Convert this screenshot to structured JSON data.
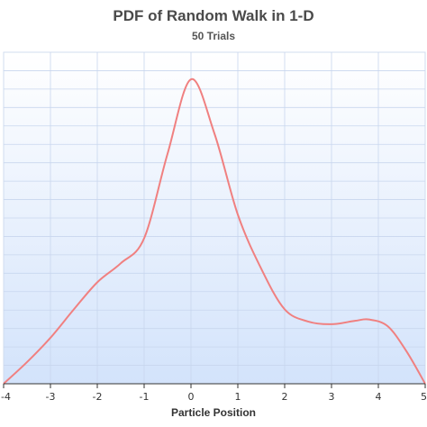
{
  "chart_data": {
    "type": "line",
    "title": "PDF of Random Walk in 1-D",
    "subtitle": "50 Trials",
    "xlabel": "Particle Position",
    "ylabel": "",
    "xlim": [
      -4,
      5
    ],
    "x_ticks": [
      "-4",
      "-3",
      "-2",
      "-1",
      "0",
      "1",
      "2",
      "3",
      "4",
      "5"
    ],
    "grid": true,
    "legend": "none",
    "series": [
      {
        "color": "#f08080",
        "x": [
          -4,
          -3.5,
          -3,
          -2.5,
          -2,
          -1.5,
          -1,
          -0.5,
          0,
          0.5,
          1,
          1.5,
          2,
          2.5,
          3,
          3.5,
          3.8,
          4.2,
          4.6,
          5
        ],
        "y": [
          0.0,
          0.032,
          0.068,
          0.11,
          0.15,
          0.178,
          0.215,
          0.34,
          0.45,
          0.37,
          0.25,
          0.17,
          0.11,
          0.092,
          0.088,
          0.093,
          0.095,
          0.085,
          0.048,
          0.0
        ]
      }
    ]
  },
  "colors": {
    "background_top": "#ffffff",
    "background_bottom": "#d3e3fb",
    "gridline": "#c8d6ee",
    "axis": "#333333"
  }
}
